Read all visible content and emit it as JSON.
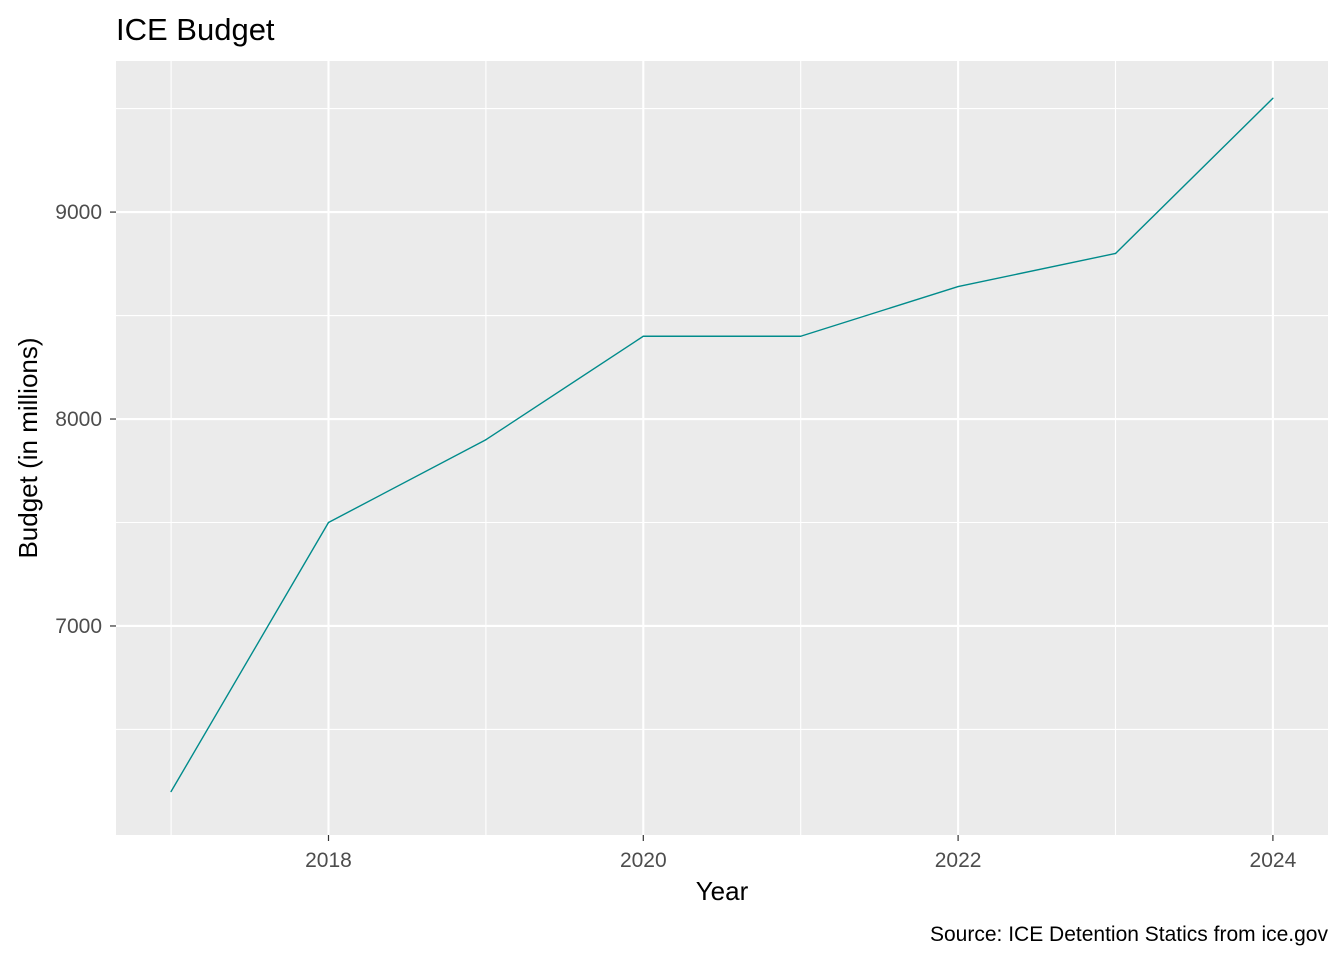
{
  "chart_data": {
    "type": "line",
    "title": "ICE Budget",
    "xlabel": "Year",
    "ylabel": "Budget (in millions)",
    "caption": "Source: ICE Detention Statics from ice.gov",
    "x": [
      2017,
      2018,
      2019,
      2020,
      2021,
      2022,
      2023,
      2024
    ],
    "series": [
      {
        "values": [
          6200,
          7500,
          7900,
          8400,
          8400,
          8640,
          8800,
          9550
        ]
      }
    ],
    "xlim": [
      2016.65,
      2024.35
    ],
    "ylim": [
      5990,
      9730
    ],
    "x_major_ticks": [
      2018,
      2020,
      2022,
      2024
    ],
    "x_tick_labels": [
      "2018",
      "2020",
      "2022",
      "2024"
    ],
    "x_minor_gridlines": [
      2017,
      2019,
      2021,
      2023
    ],
    "y_major_ticks": [
      7000,
      8000,
      9000
    ],
    "y_tick_labels": [
      "7000",
      "8000",
      "9000"
    ],
    "y_minor_gridlines": [
      6500,
      7500,
      8500,
      9500
    ],
    "grid": true,
    "legend": "none",
    "colors": {
      "line": "#008b8b",
      "panel": "#ebebeb",
      "grid": "#ffffff",
      "tick_text": "#4d4d4d",
      "text": "#000000"
    }
  }
}
